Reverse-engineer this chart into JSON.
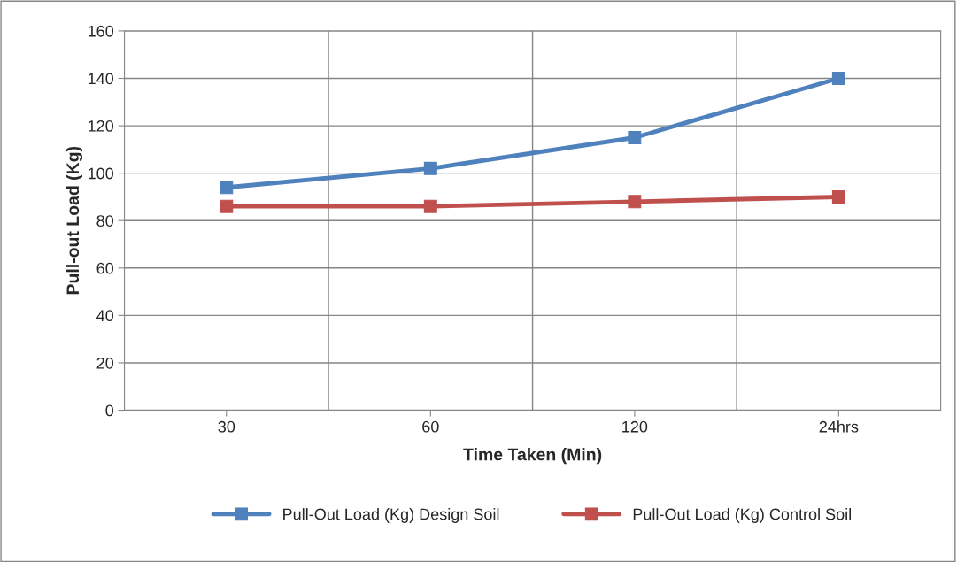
{
  "chart_data": {
    "type": "line",
    "xlabel": "Time Taken (Min)",
    "ylabel": "Pull-out Load (Kg)",
    "categories": [
      "30",
      "60",
      "120",
      "24hrs"
    ],
    "series": [
      {
        "name": "Pull-Out Load (Kg) Design Soil",
        "color": "#4f81bd",
        "values": [
          94,
          102,
          115,
          140
        ]
      },
      {
        "name": "Pull-Out Load (Kg) Control Soil",
        "color": "#c0504d",
        "values": [
          86,
          86,
          88,
          90
        ]
      }
    ],
    "ylim": [
      0,
      160
    ],
    "yticks": [
      0,
      20,
      40,
      60,
      80,
      100,
      120,
      140,
      160
    ],
    "grid": true,
    "legend": "bottom",
    "marker": "square",
    "line_style": "solid"
  }
}
